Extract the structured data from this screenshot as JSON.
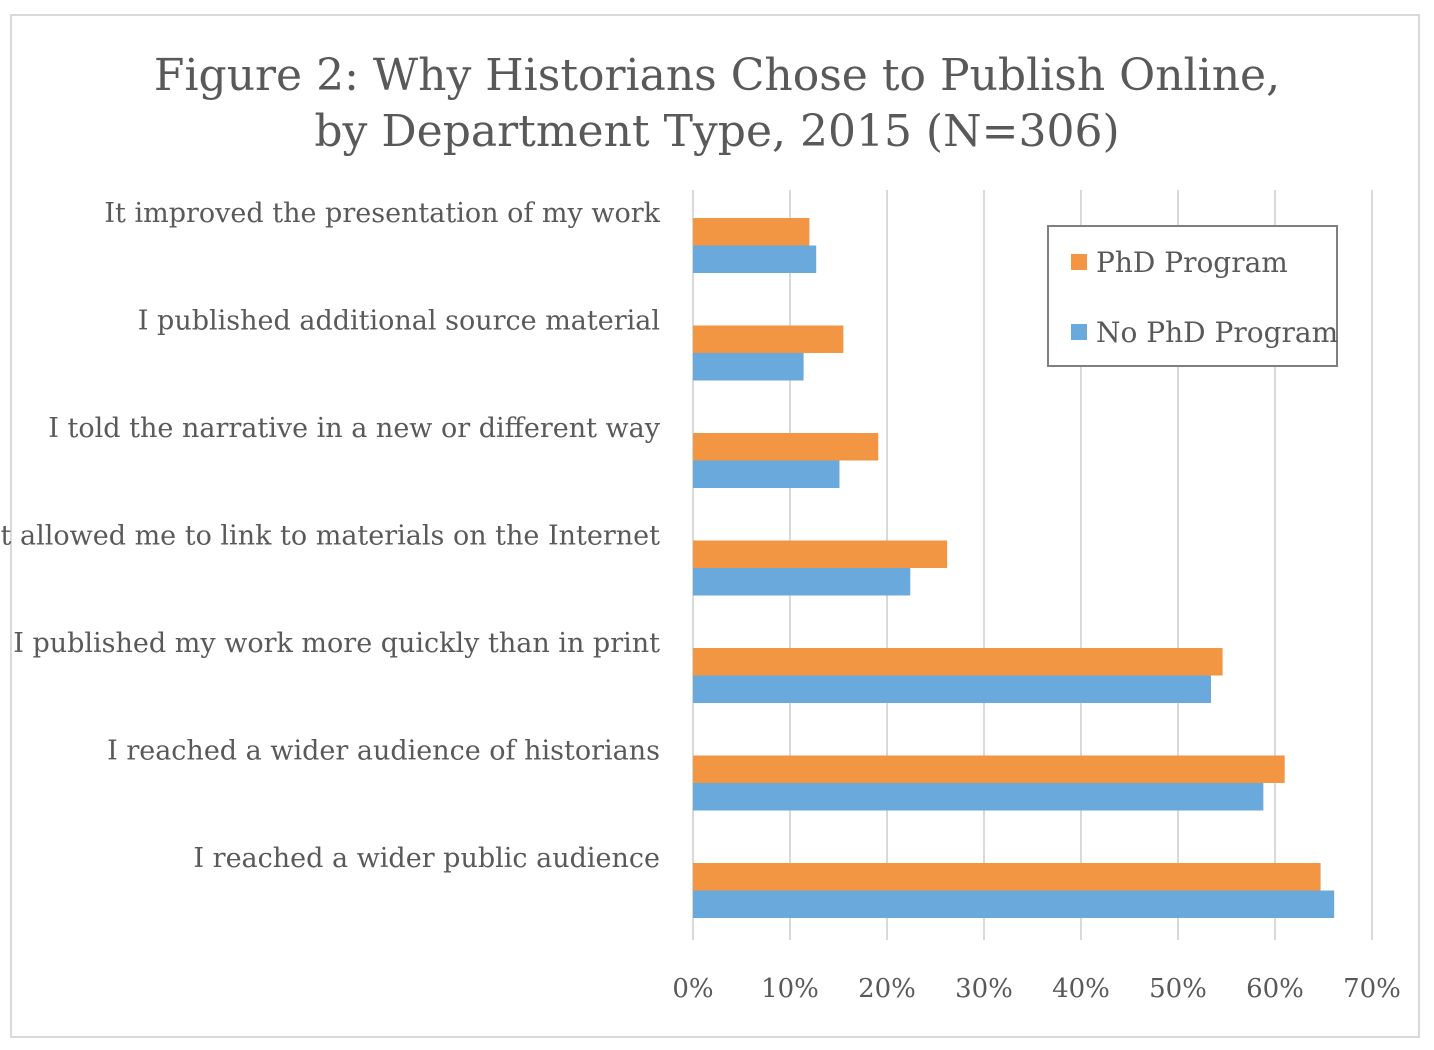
{
  "chart_data": {
    "type": "bar",
    "orientation": "horizontal",
    "title_lines": [
      "Figure 2: Why Historians Chose to Publish Online,",
      "by Department Type, 2015 (N=306)"
    ],
    "categories": [
      "It improved the presentation of my work",
      "I published additional source material",
      "I told the narrative in a new or different way",
      "It allowed me to link to materials on the Internet",
      "I published my work more quickly than in print",
      "I reached a wider audience of historians",
      "I reached a wider public audience"
    ],
    "series": [
      {
        "name": "PhD Program",
        "color": "#f39644",
        "values": [
          12.0,
          15.5,
          19.1,
          26.2,
          54.6,
          61.0,
          64.7
        ]
      },
      {
        "name": "No PhD Program",
        "color": "#6aa9db",
        "values": [
          12.7,
          11.4,
          15.1,
          22.4,
          53.4,
          58.8,
          66.1
        ]
      }
    ],
    "xlim": [
      0,
      70
    ],
    "xticks": [
      "0%",
      "10%",
      "20%",
      "30%",
      "40%",
      "50%",
      "60%",
      "70%"
    ],
    "grid": "vertical",
    "legend_position": "top-right"
  }
}
